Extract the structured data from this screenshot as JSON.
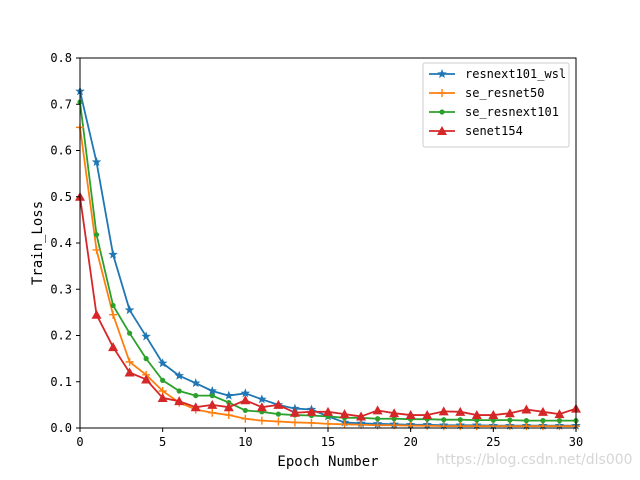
{
  "chart_data": {
    "type": "line",
    "title": "",
    "xlabel": "Epoch Number",
    "ylabel": "Train_Loss",
    "xlim": [
      0,
      30
    ],
    "ylim": [
      0,
      0.8
    ],
    "xticks": [
      0,
      5,
      10,
      15,
      20,
      25,
      30
    ],
    "yticks": [
      0.0,
      0.1,
      0.2,
      0.3,
      0.4,
      0.5,
      0.6,
      0.7,
      0.8
    ],
    "grid": false,
    "legend_position": "top-right",
    "x": [
      0,
      1,
      2,
      3,
      4,
      5,
      6,
      7,
      8,
      9,
      10,
      11,
      12,
      13,
      14,
      15,
      16,
      17,
      18,
      19,
      20,
      21,
      22,
      23,
      24,
      25,
      26,
      27,
      28,
      29,
      30
    ],
    "series": [
      {
        "name": "resnext101_wsl",
        "color": "#1f77b4",
        "marker": "star",
        "values": [
          0.728,
          0.575,
          0.375,
          0.255,
          0.198,
          0.14,
          0.113,
          0.097,
          0.08,
          0.07,
          0.075,
          0.062,
          0.05,
          0.042,
          0.04,
          0.025,
          0.012,
          0.01,
          0.009,
          0.008,
          0.007,
          0.007,
          0.006,
          0.006,
          0.006,
          0.005,
          0.005,
          0.005,
          0.005,
          0.005,
          0.005
        ]
      },
      {
        "name": "se_resnet50",
        "color": "#ff7f0e",
        "marker": "plus",
        "values": [
          0.65,
          0.385,
          0.245,
          0.143,
          0.115,
          0.08,
          0.055,
          0.04,
          0.033,
          0.028,
          0.02,
          0.016,
          0.014,
          0.012,
          0.011,
          0.009,
          0.008,
          0.007,
          0.006,
          0.006,
          0.005,
          0.005,
          0.004,
          0.004,
          0.004,
          0.004,
          0.004,
          0.004,
          0.004,
          0.004,
          0.004
        ]
      },
      {
        "name": "se_resnext101",
        "color": "#2ca02c",
        "marker": "circle",
        "values": [
          0.705,
          0.418,
          0.265,
          0.205,
          0.15,
          0.103,
          0.08,
          0.07,
          0.07,
          0.055,
          0.038,
          0.035,
          0.03,
          0.028,
          0.027,
          0.025,
          0.022,
          0.022,
          0.02,
          0.02,
          0.019,
          0.019,
          0.018,
          0.018,
          0.017,
          0.017,
          0.017,
          0.016,
          0.016,
          0.016,
          0.016
        ]
      },
      {
        "name": "senet154",
        "color": "#d62728",
        "marker": "triangle",
        "values": [
          0.5,
          0.245,
          0.175,
          0.12,
          0.105,
          0.065,
          0.058,
          0.045,
          0.05,
          0.045,
          0.06,
          0.045,
          0.05,
          0.033,
          0.035,
          0.035,
          0.03,
          0.025,
          0.038,
          0.032,
          0.028,
          0.028,
          0.036,
          0.035,
          0.028,
          0.028,
          0.032,
          0.04,
          0.035,
          0.03,
          0.042
        ]
      }
    ]
  },
  "watermark": "https://blog.csdn.net/dls000"
}
